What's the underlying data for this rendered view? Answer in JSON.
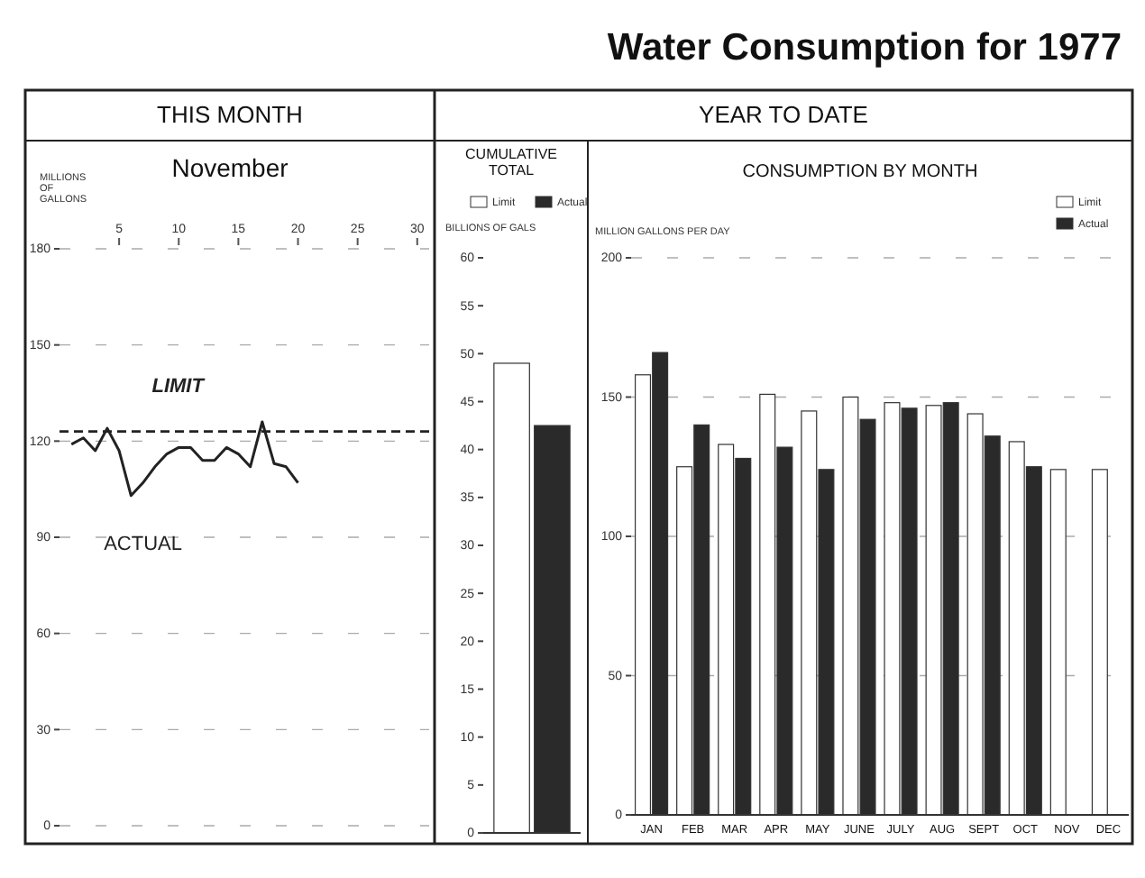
{
  "chart_data": [
    {
      "type": "line",
      "title": "THIS MONTH",
      "subtitle": "November",
      "ylabel": "MILLIONS OF GALLONS",
      "annotations": [
        "Water Consumption for 1977"
      ],
      "x": [
        1,
        2,
        3,
        4,
        5,
        6,
        7,
        8,
        9,
        10,
        11,
        12,
        13,
        14,
        15,
        16,
        17,
        18,
        19,
        20
      ],
      "series": [
        {
          "name": "ACTUAL",
          "color": "#222222",
          "values": [
            119,
            121,
            117,
            124,
            117,
            103,
            107,
            112,
            116,
            118,
            118,
            114,
            114,
            118,
            116,
            112,
            126,
            113,
            112,
            107
          ]
        }
      ],
      "xlim": [
        0,
        31
      ],
      "xticks": [
        5,
        10,
        15,
        20,
        25,
        30
      ],
      "ylim": [
        0,
        180
      ],
      "yticks": [
        0,
        30,
        60,
        90,
        120,
        150,
        180
      ],
      "grid": "y",
      "ref_lines": [
        {
          "axis": "y",
          "value": 123,
          "label": "LIMIT",
          "line_style": "dashed"
        }
      ]
    },
    {
      "type": "bar",
      "title": "CUMULATIVE TOTAL",
      "ylabel": "BILLIONS OF GALS",
      "categories": [
        null
      ],
      "series": [
        {
          "name": "Limit",
          "color": "#ffffff",
          "values": [
            49
          ]
        },
        {
          "name": "Actual",
          "color": "#2a2a2a",
          "values": [
            42.5
          ]
        }
      ],
      "ylim": [
        0,
        60
      ],
      "yticks": [
        0,
        5,
        10,
        15,
        20,
        25,
        30,
        35,
        40,
        45,
        50,
        55,
        60
      ],
      "legend": "top"
    },
    {
      "type": "bar",
      "title": "YEAR TO DATE",
      "subtitle": "CONSUMPTION BY MONTH",
      "ylabel": "MILLION GALLONS PER DAY",
      "categories": [
        "JAN",
        "FEB",
        "MAR",
        "APR",
        "MAY",
        "JUNE",
        "JULY",
        "AUG",
        "SEPT",
        "OCT",
        "NOV",
        "DEC"
      ],
      "series": [
        {
          "name": "Limit",
          "color": "#ffffff",
          "values": [
            158,
            125,
            133,
            151,
            145,
            150,
            148,
            147,
            144,
            134,
            124,
            124
          ]
        },
        {
          "name": "Actual",
          "color": "#2a2a2a",
          "values": [
            166,
            140,
            128,
            132,
            124,
            142,
            146,
            148,
            136,
            125,
            null,
            null
          ]
        }
      ],
      "ylim": [
        0,
        200
      ],
      "yticks": [
        0,
        50,
        100,
        150,
        200
      ],
      "grid": "y",
      "legend": "top right"
    }
  ]
}
